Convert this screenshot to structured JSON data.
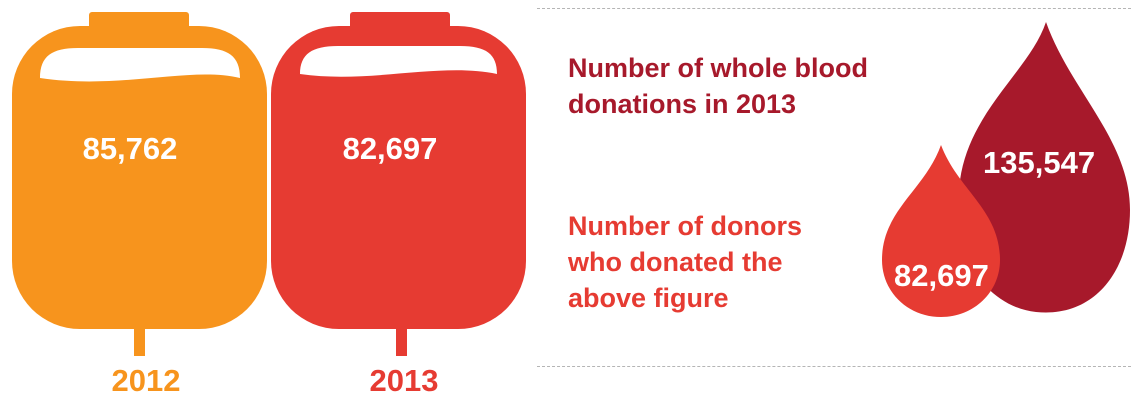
{
  "bags": [
    {
      "year": "2012",
      "value": "85,762",
      "color": "#f7941d"
    },
    {
      "year": "2013",
      "value": "82,697",
      "color": "#e63b32"
    }
  ],
  "panel": {
    "heading_donations": "Number of whole blood donations in 2013",
    "heading_donors": "Number of donors who donated the above figure",
    "heading_donations_color": "#a7192b",
    "heading_donors_color": "#e63b32"
  },
  "drops": {
    "large": {
      "value": "135,547",
      "color": "#a7192b"
    },
    "small": {
      "value": "82,697",
      "color": "#e63b32"
    }
  }
}
